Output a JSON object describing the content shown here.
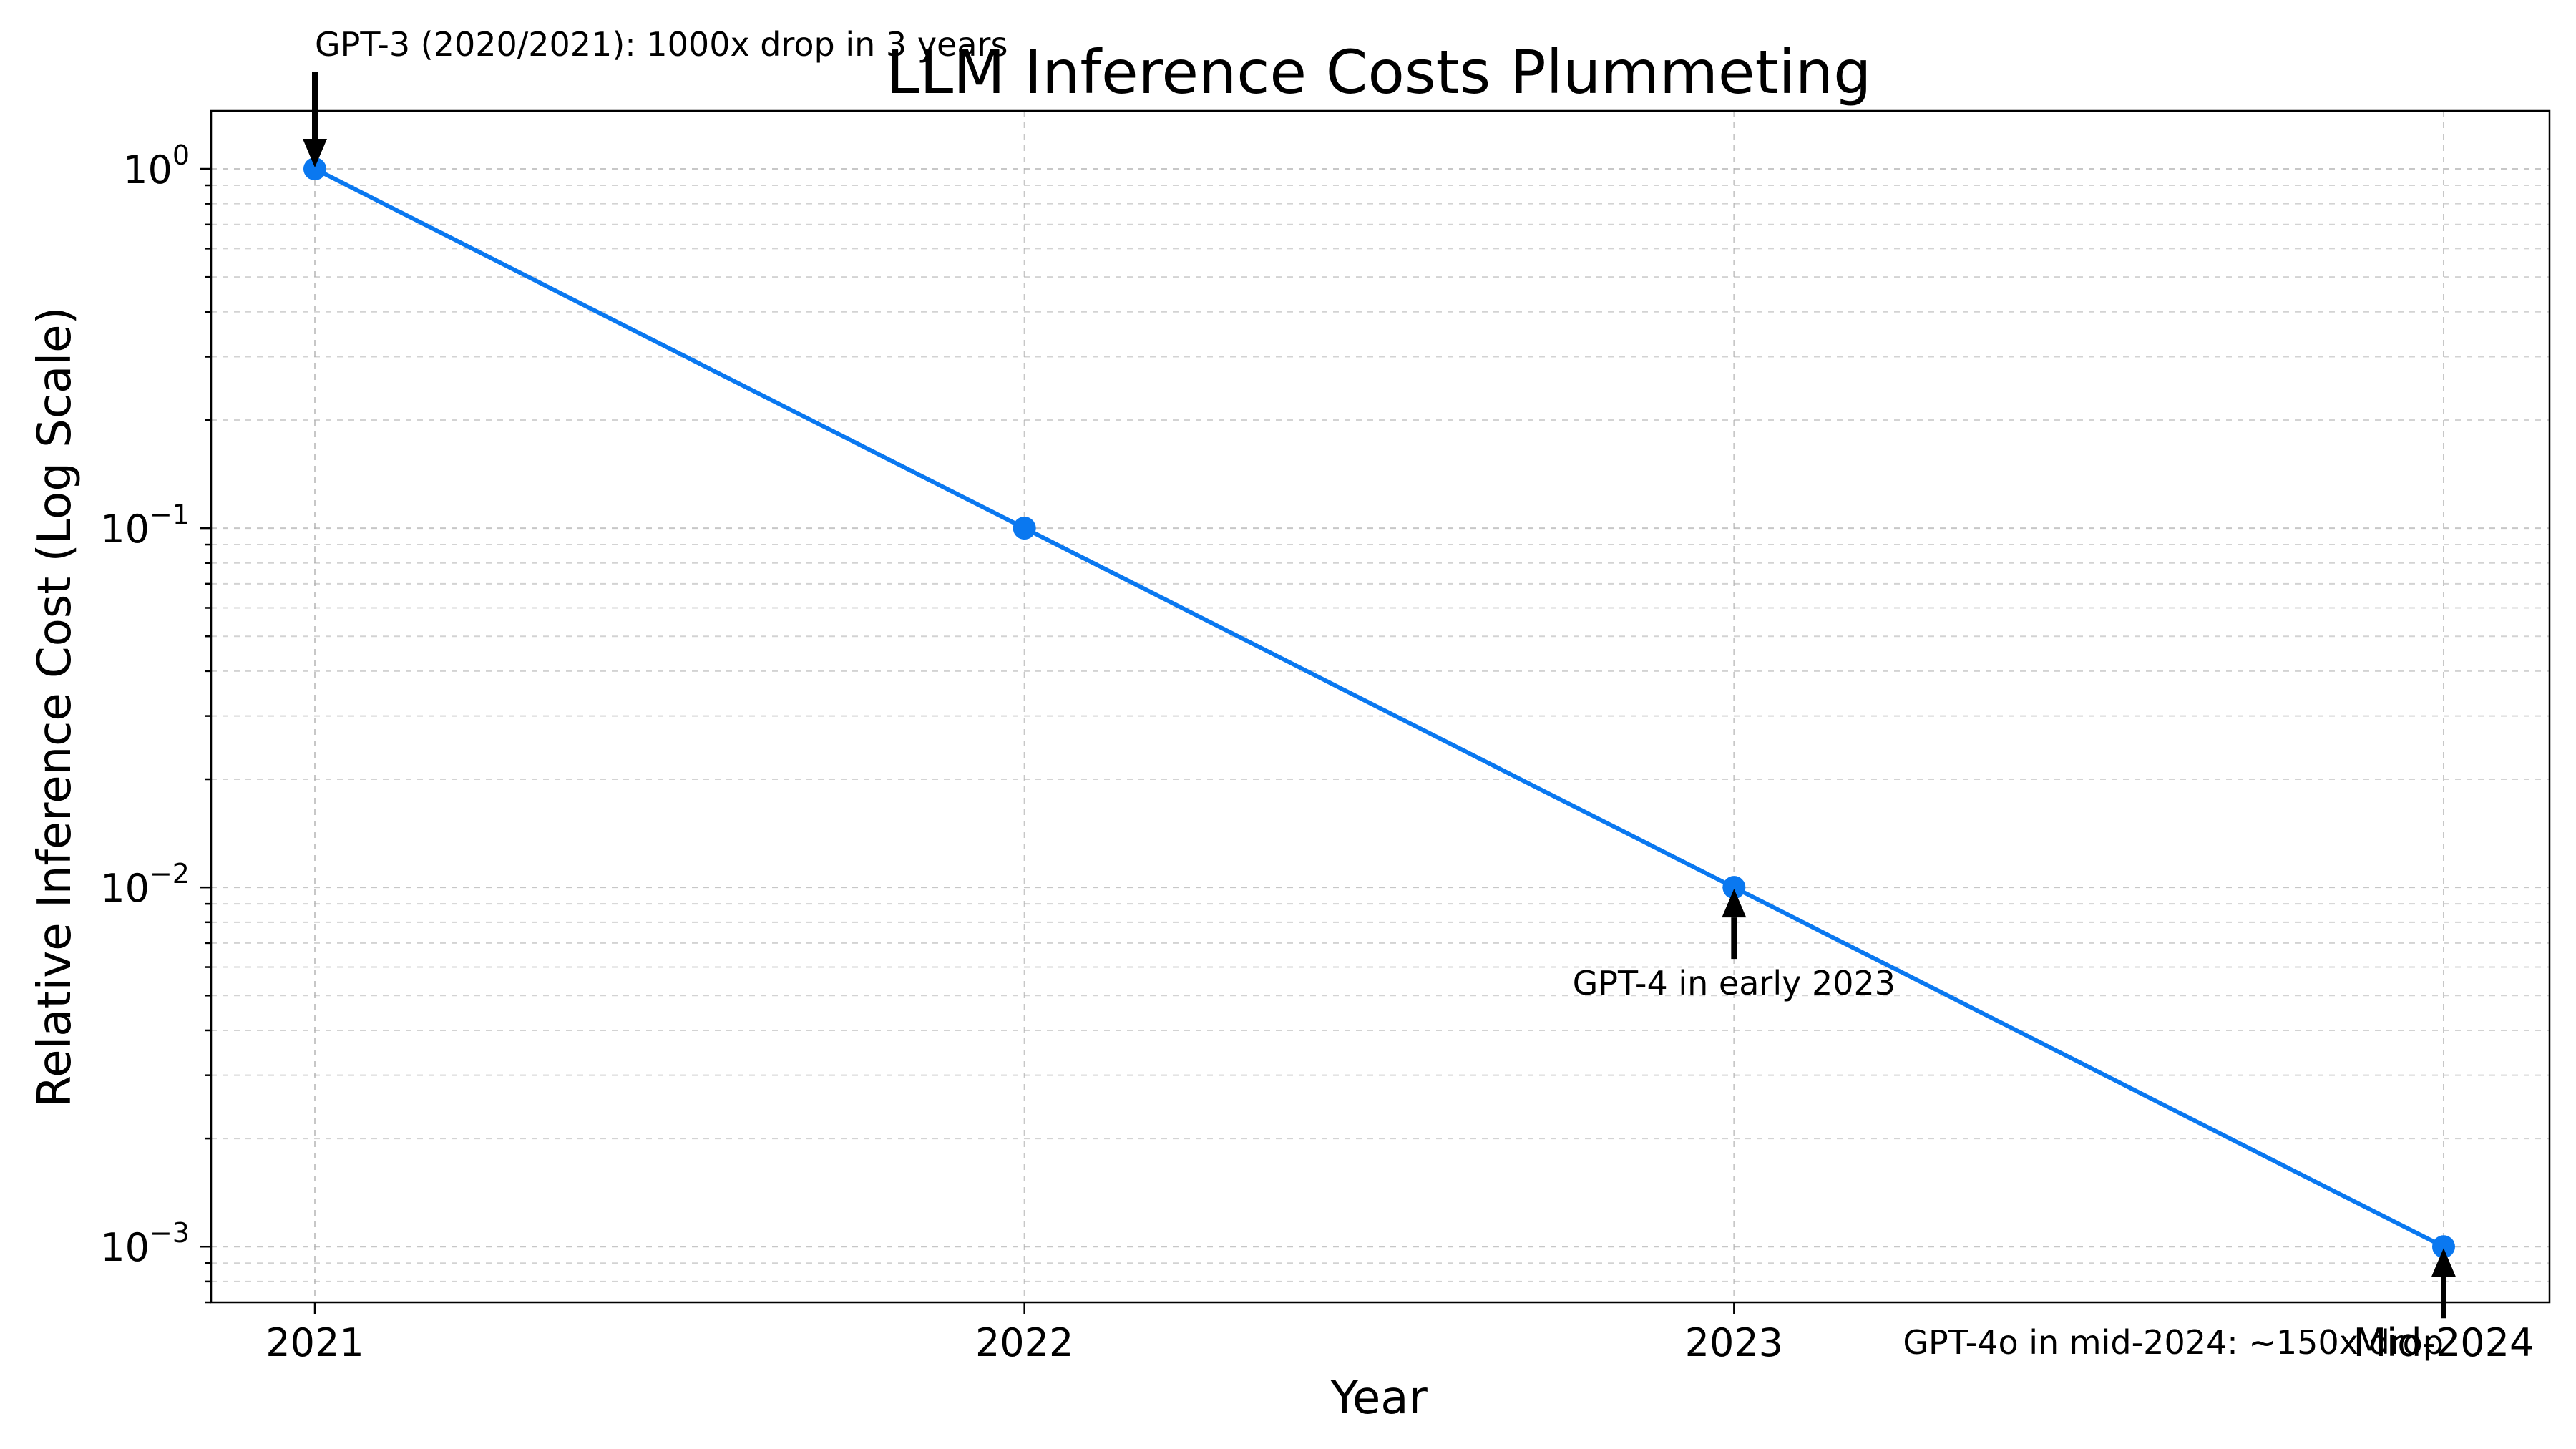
{
  "chart_data": {
    "type": "line",
    "title": "LLM Inference Costs Plummeting",
    "xlabel": "Year",
    "ylabel": "Relative Inference Cost (Log Scale)",
    "y_scale": "log",
    "ylim": [
      0.0007,
      1.45
    ],
    "grid": true,
    "categories": [
      "2021",
      "2022",
      "2023",
      "Mid-2024"
    ],
    "y_ticks": [
      {
        "value": 1,
        "mantissa": "10",
        "exponent": "0"
      },
      {
        "value": 0.1,
        "mantissa": "10",
        "exponent": "−1"
      },
      {
        "value": 0.01,
        "mantissa": "10",
        "exponent": "−2"
      },
      {
        "value": 0.001,
        "mantissa": "10",
        "exponent": "−3"
      }
    ],
    "series": [
      {
        "values": [
          1,
          0.1,
          0.01,
          0.001
        ],
        "color": "#0a78f0",
        "marker": "circle"
      }
    ],
    "annotations": [
      {
        "text": "GPT-3 (2020/2021): 1000x drop in 3 years",
        "point_index": 0
      },
      {
        "text": "GPT-4 in early 2023",
        "point_index": 2
      },
      {
        "text": "GPT-4o in mid-2024: ~150x drop",
        "point_index": 3
      }
    ]
  }
}
